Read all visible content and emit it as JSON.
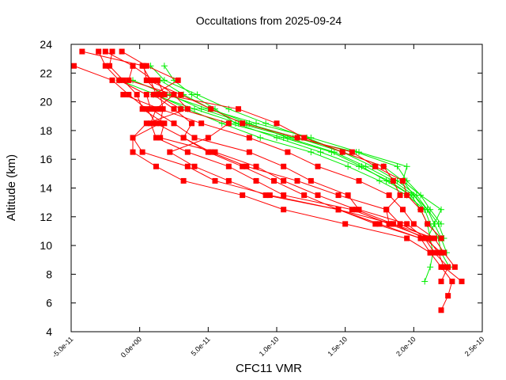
{
  "chart_data": {
    "type": "scatter",
    "title": "Occultations from 2025-09-24",
    "xlabel": "CFC11 VMR",
    "ylabel": "Altitude (km)",
    "xlim": [
      -5e-11,
      2.5e-10
    ],
    "ylim": [
      4,
      24
    ],
    "xticks": [
      -5e-11,
      0,
      5e-11,
      1e-10,
      1.5e-10,
      2e-10,
      2.5e-10
    ],
    "xtick_labels": [
      "-5.0e-11",
      "0.0e+00",
      "5.0e-11",
      "1.0e-10",
      "1.5e-10",
      "2.0e-10",
      "2.5e-10"
    ],
    "yticks": [
      4,
      6,
      8,
      10,
      12,
      14,
      16,
      18,
      20,
      22,
      24
    ],
    "ytick_labels": [
      "4",
      "6",
      "8",
      "10",
      "12",
      "14",
      "16",
      "18",
      "20",
      "22",
      "24"
    ],
    "grid": false,
    "legend": "none",
    "colors": {
      "red_series": "#ff0000",
      "green_series": "#00ee00"
    },
    "series": [
      {
        "name": "red-1",
        "marker": "square",
        "color": "#ff0000",
        "alt": [
          23.5,
          22.5,
          21.5,
          20.5,
          19.5,
          18.5,
          17.5,
          16.5,
          15.5,
          14.5,
          13.5,
          12.5,
          11.5,
          10.5,
          9.5,
          8.5,
          7.5,
          6.5,
          5.5
        ],
        "x": [
          -4.2e-11,
          3e-12,
          5e-12,
          1.5e-11,
          1.7e-11,
          1.5e-11,
          -5e-12,
          2e-12,
          3.5e-11,
          5.5e-11,
          9.5e-11,
          1.45e-10,
          1.72e-10,
          2.05e-10,
          2.12e-10,
          2.2e-10,
          2.28e-10,
          2.25e-10,
          2.2e-10
        ]
      },
      {
        "name": "red-2",
        "marker": "square",
        "color": "#ff0000",
        "alt": [
          23.5,
          22.5,
          21.5,
          20.5,
          19.5,
          18.5,
          17.5,
          16.5,
          15.5,
          14.5,
          13.5,
          12.5,
          11.5,
          10.5,
          9.5,
          8.5,
          7.5
        ],
        "x": [
          -2.5e-11,
          -5e-12,
          1e-11,
          2.5e-11,
          1.2e-11,
          8e-12,
          1.2e-11,
          3.5e-11,
          6.5e-11,
          8.5e-11,
          1.05e-10,
          1.55e-10,
          1.82e-10,
          2.1e-10,
          2.18e-10,
          2.22e-10,
          2.35e-10
        ]
      },
      {
        "name": "red-3",
        "marker": "square",
        "color": "#ff0000",
        "alt": [
          23.5,
          22.5,
          21.5,
          20.5,
          19.5,
          18.5,
          17.5,
          16.5,
          15.5,
          14.5,
          13.5,
          12.5,
          11.5,
          10.5,
          9.5,
          8.5
        ],
        "x": [
          -2e-11,
          -2.2e-11,
          -1.2e-11,
          -2e-12,
          2e-12,
          1.8e-11,
          1.5e-11,
          5.5e-11,
          8.5e-11,
          1.05e-10,
          1.3e-10,
          1.58e-10,
          1.85e-10,
          2.15e-10,
          2.22e-10,
          2.3e-10
        ]
      },
      {
        "name": "red-4",
        "marker": "square",
        "color": "#ff0000",
        "alt": [
          22.5,
          21.5,
          20.5,
          19.5,
          18.5,
          17.5,
          16.5,
          15.5,
          14.5,
          13.5,
          12.5,
          11.5,
          10.5,
          9.5,
          8.5,
          7.5
        ],
        "x": [
          -4.8e-11,
          -2e-11,
          -8e-12,
          5e-12,
          1.2e-11,
          3.2e-11,
          5e-11,
          7.5e-11,
          9.8e-11,
          1.2e-10,
          1.45e-10,
          1.85e-10,
          2.08e-10,
          2.15e-10,
          2.25e-10,
          2.2e-10
        ]
      },
      {
        "name": "red-5",
        "marker": "square",
        "color": "#ff0000",
        "alt": [
          23.5,
          22.5,
          21.5,
          20.5,
          19.5,
          18.5,
          17.5,
          16.5,
          15.5,
          14.5,
          13.5,
          12.5,
          11.5,
          10.5,
          9.5
        ],
        "x": [
          -3e-11,
          -2.5e-11,
          -1.5e-11,
          5e-12,
          8e-12,
          2.5e-11,
          4e-11,
          8e-11,
          1.05e-10,
          1.25e-10,
          1.52e-10,
          1.6e-10,
          1.95e-10,
          2.08e-10,
          2.2e-10
        ]
      },
      {
        "name": "red-6",
        "marker": "square",
        "color": "#ff0000",
        "alt": [
          23.5,
          22.5,
          21.5,
          20.5,
          19.5,
          18.5,
          17.5,
          16.5,
          15.5,
          14.5,
          13.5,
          12.5,
          11.5,
          10.5
        ],
        "x": [
          -1.3e-11,
          5e-12,
          2.8e-11,
          1e-11,
          2.5e-11,
          3.8e-11,
          3.2e-11,
          5.2e-11,
          7.8e-11,
          1.15e-10,
          1.45e-10,
          1.8e-10,
          1.9e-10,
          2.12e-10
        ]
      },
      {
        "name": "red-7",
        "marker": "square",
        "color": "#ff0000",
        "alt": [
          22.5,
          21.5,
          20.5,
          19.5,
          18.5,
          17.5,
          16.5,
          15.5,
          14.5,
          13.5,
          12.5,
          11.5,
          10.5,
          9.5
        ],
        "x": [
          -5e-12,
          -8e-12,
          2.5e-11,
          3.5e-11,
          5e-12,
          -5e-12,
          -5e-12,
          1.2e-11,
          3.2e-11,
          7.5e-11,
          1.05e-10,
          1.5e-10,
          1.95e-10,
          2.12e-10
        ]
      },
      {
        "name": "red-8",
        "marker": "square",
        "color": "#ff0000",
        "alt": [
          22.5,
          21.5,
          20.5,
          19.5,
          18.5,
          17.5,
          16.5,
          15.5,
          14.5,
          13.5,
          12.5,
          11.5,
          10.5
        ],
        "x": [
          2e-12,
          8e-12,
          1.2e-11,
          3e-11,
          6.5e-11,
          5e-11,
          2.2e-11,
          4e-11,
          6.5e-11,
          9.2e-11,
          1.45e-10,
          1.75e-10,
          2.05e-10
        ]
      },
      {
        "name": "red-9",
        "marker": "square",
        "color": "#ff0000",
        "alt": [
          21.5,
          20.5,
          19.5,
          18.5,
          17.5,
          16.5,
          15.5,
          14.5,
          13.5,
          12.5,
          11.5,
          10.5
        ],
        "x": [
          6e-12,
          3e-11,
          5.2e-11,
          7.5e-11,
          1.15e-10,
          1.55e-10,
          1.72e-10,
          1.92e-10,
          1.95e-10,
          2.05e-10,
          2.1e-10,
          2.2e-10
        ]
      },
      {
        "name": "red-10",
        "marker": "square",
        "color": "#ff0000",
        "alt": [
          20.5,
          19.5,
          18.5,
          17.5,
          16.5,
          15.5,
          14.5,
          13.5,
          12.5,
          11.5,
          10.5
        ],
        "x": [
          -1.2e-11,
          1.5e-11,
          4.5e-11,
          8e-11,
          1.08e-10,
          1.3e-10,
          1.6e-10,
          1.82e-10,
          1.92e-10,
          2e-10,
          2.15e-10
        ]
      },
      {
        "name": "red-11",
        "marker": "square",
        "color": "#ff0000",
        "alt": [
          21.5,
          20.5,
          19.5,
          18.5,
          17.5,
          16.5,
          15.5,
          14.5,
          13.5,
          12.5,
          11.5
        ],
        "x": [
          1.3e-11,
          1.8e-11,
          7.2e-11,
          1e-10,
          1.2e-10,
          1.48e-10,
          1.78e-10,
          1.85e-10,
          1.9e-10,
          1.8e-10,
          1.82e-10
        ]
      },
      {
        "name": "green-1",
        "marker": "plus",
        "color": "#00ee00",
        "alt": [
          22.5,
          21.5,
          20.5,
          19.5,
          18.5,
          17.5,
          16.5,
          15.5,
          14.5,
          13.5,
          12.5,
          11.5,
          10.5,
          9.5,
          8.5,
          7.5
        ],
        "x": [
          1.8e-11,
          2.5e-11,
          3.8e-11,
          5.5e-11,
          7e-11,
          1e-10,
          1.32e-10,
          1.6e-10,
          1.82e-10,
          1.98e-10,
          2.05e-10,
          2.1e-10,
          2.12e-10,
          2.14e-10,
          2.12e-10,
          2.08e-10
        ]
      },
      {
        "name": "green-2",
        "marker": "plus",
        "color": "#00ee00",
        "alt": [
          22.5,
          21.5,
          20.5,
          19.5,
          18.5,
          17.5,
          16.5,
          15.5,
          14.5,
          13.5,
          12.5,
          11.5,
          10.5
        ],
        "x": [
          8e-12,
          1.8e-11,
          4.2e-11,
          6.5e-11,
          9.2e-11,
          1.22e-10,
          1.48e-10,
          1.78e-10,
          1.92e-10,
          2.05e-10,
          2.2e-10,
          2.15e-10,
          2.1e-10
        ]
      },
      {
        "name": "green-3",
        "marker": "plus",
        "color": "#00ee00",
        "alt": [
          21.5,
          20.5,
          19.5,
          18.5,
          17.5,
          16.5,
          15.5,
          14.5,
          13.5,
          12.5,
          11.5,
          10.5,
          9.5,
          8.5
        ],
        "x": [
          -1.5e-11,
          1.2e-11,
          3.5e-11,
          6e-11,
          8.8e-11,
          1.25e-10,
          1.52e-10,
          1.75e-10,
          1.95e-10,
          2.08e-10,
          2.12e-10,
          2.18e-10,
          2.2e-10,
          2.26e-10
        ]
      },
      {
        "name": "green-4",
        "marker": "plus",
        "color": "#00ee00",
        "alt": [
          21.5,
          20.5,
          19.5,
          18.5,
          17.5,
          16.5,
          15.5,
          14.5,
          13.5,
          12.5,
          11.5,
          10.5
        ],
        "x": [
          1.5e-11,
          3.2e-11,
          5.2e-11,
          8e-11,
          1.08e-10,
          1.42e-10,
          1.65e-10,
          1.85e-10,
          2e-10,
          2.1e-10,
          2.18e-10,
          2.22e-10
        ]
      },
      {
        "name": "green-5",
        "marker": "plus",
        "color": "#00ee00",
        "alt": [
          20.5,
          19.5,
          18.5,
          17.5,
          16.5,
          15.5,
          14.5,
          13.5,
          12.5,
          11.5
        ],
        "x": [
          1e-11,
          4e-11,
          7.2e-11,
          1.12e-10,
          1.58e-10,
          1.88e-10,
          1.95e-10,
          2.05e-10,
          2.12e-10,
          2.2e-10
        ]
      },
      {
        "name": "green-6",
        "marker": "plus",
        "color": "#00ee00",
        "alt": [
          21.5,
          20.5,
          19.5,
          18.5,
          17.5,
          16.5,
          15.5,
          14.5,
          13.5,
          12.5
        ],
        "x": [
          -5e-12,
          2e-11,
          5e-11,
          8.5e-11,
          1.25e-10,
          1.6e-10,
          1.95e-10,
          1.92e-10,
          2e-10,
          2.08e-10
        ]
      },
      {
        "name": "green-7",
        "marker": "plus",
        "color": "#00ee00",
        "alt": [
          20.5,
          19.5,
          18.5,
          17.5,
          16.5,
          15.5,
          14.5,
          13.5,
          12.5,
          11.5,
          10.5,
          9.5
        ],
        "x": [
          2.2e-11,
          4.5e-11,
          7.8e-11,
          1.15e-10,
          1.48e-10,
          1.7e-10,
          1.88e-10,
          2.02e-10,
          2.1e-10,
          2.15e-10,
          2.2e-10,
          2.24e-10
        ]
      },
      {
        "name": "green-8",
        "marker": "plus",
        "color": "#00ee00",
        "alt": [
          19.5,
          18.5,
          17.5,
          16.5,
          15.5,
          14.5,
          13.5,
          12.5
        ],
        "x": [
          3e-11,
          6.5e-11,
          1.05e-10,
          1.4e-10,
          1.62e-10,
          1.8e-10,
          1.98e-10,
          2.05e-10
        ]
      }
    ]
  }
}
